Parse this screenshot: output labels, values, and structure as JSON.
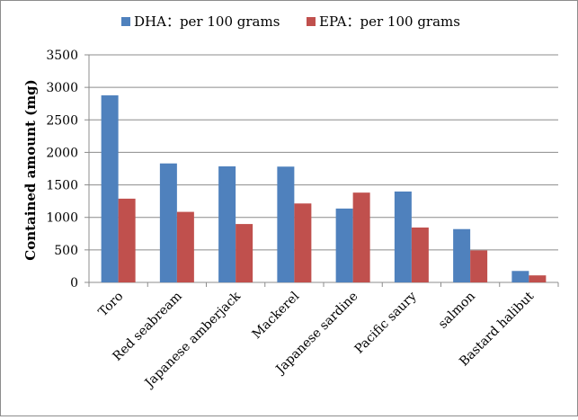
{
  "chart_data": {
    "type": "bar",
    "title": "",
    "xlabel": "",
    "ylabel": "Contained amount (mg)",
    "ylim": [
      0,
      3500
    ],
    "yticks": [
      0,
      500,
      1000,
      1500,
      2000,
      2500,
      3000,
      3500
    ],
    "grid": true,
    "legend": "top",
    "categories": [
      "Toro",
      "Red seabream",
      "Japanese amberjack",
      "Mackerel",
      "Japanese sardine",
      "Pacific saury",
      "salmon",
      "Bastard halibut"
    ],
    "series": [
      {
        "name": "DHA：per 100 grams",
        "color": "#4f81bd",
        "values": [
          2877,
          1830,
          1785,
          1781,
          1136,
          1398,
          820,
          176
        ]
      },
      {
        "name": "EPA：per 100 grams",
        "color": "#c0504d",
        "values": [
          1288,
          1085,
          898,
          1214,
          1381,
          844,
          492,
          108
        ]
      }
    ]
  }
}
